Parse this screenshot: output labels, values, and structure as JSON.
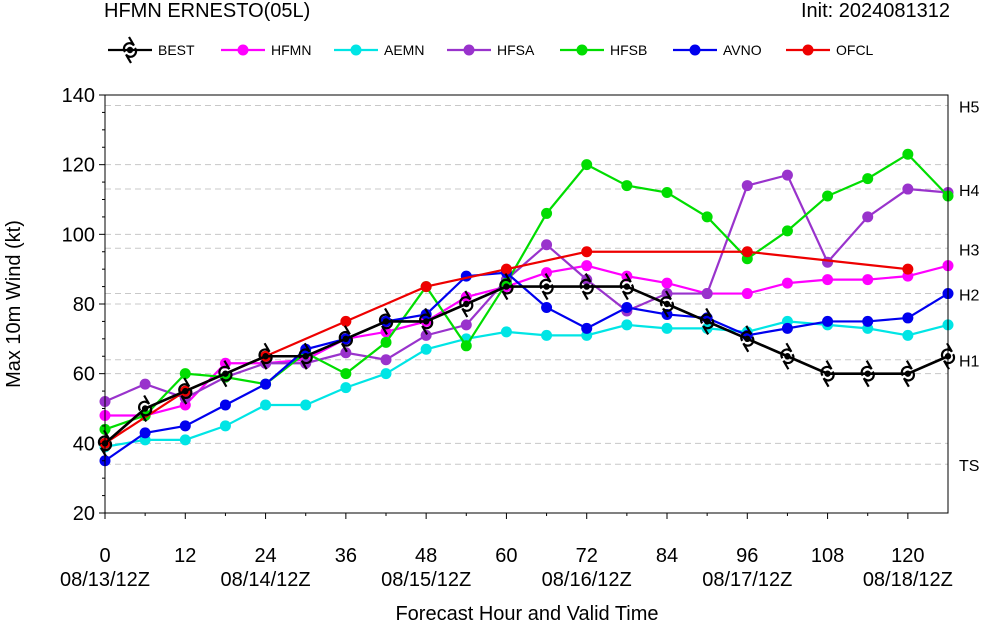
{
  "header": {
    "title": "HFMN ERNESTO(05L)",
    "init": "Init: 2024081312"
  },
  "chart_data": {
    "type": "line",
    "title": "HFMN ERNESTO(05L)",
    "xlabel": "Forecast Hour and Valid Time",
    "ylabel": "Max 10m Wind (kt)",
    "xlim": [
      0,
      126
    ],
    "ylim": [
      20,
      140
    ],
    "x_ticks": [
      0,
      12,
      24,
      36,
      48,
      60,
      72,
      84,
      96,
      108,
      120
    ],
    "x_date_ticks": [
      {
        "hour": 0,
        "label": "08/13/12Z"
      },
      {
        "hour": 24,
        "label": "08/14/12Z"
      },
      {
        "hour": 48,
        "label": "08/15/12Z"
      },
      {
        "hour": 72,
        "label": "08/16/12Z"
      },
      {
        "hour": 96,
        "label": "08/17/12Z"
      },
      {
        "hour": 120,
        "label": "08/18/12Z"
      }
    ],
    "y_ticks": [
      20,
      40,
      60,
      80,
      100,
      120,
      140
    ],
    "intensity_categories": [
      {
        "label": "TS",
        "value": 34
      },
      {
        "label": "H1",
        "value": 64
      },
      {
        "label": "H2",
        "value": 83
      },
      {
        "label": "H3",
        "value": 96
      },
      {
        "label": "H4",
        "value": 113
      },
      {
        "label": "H5",
        "value": 137
      }
    ],
    "legend_position": "top",
    "series": [
      {
        "name": "BEST",
        "color": "#000000",
        "marker": "hurricane-symbol",
        "x": [
          0,
          6,
          12,
          18,
          24,
          30,
          36,
          42,
          48,
          54,
          60,
          66,
          72,
          78,
          84,
          90,
          96,
          102,
          108,
          114,
          120,
          126
        ],
        "y": [
          40,
          50,
          55,
          60,
          65,
          65,
          70,
          75,
          75,
          80,
          85,
          85,
          85,
          85,
          80,
          75,
          70,
          65,
          60,
          60,
          60,
          65
        ]
      },
      {
        "name": "HFMN",
        "color": "#ff00ff",
        "marker": "circle",
        "x": [
          0,
          6,
          12,
          18,
          24,
          30,
          36,
          42,
          48,
          54,
          60,
          66,
          72,
          78,
          84,
          90,
          96,
          102,
          108,
          114,
          120,
          126
        ],
        "y": [
          48,
          48,
          51,
          63,
          63,
          64,
          70,
          72,
          75,
          82,
          85,
          89,
          91,
          88,
          86,
          83,
          83,
          86,
          87,
          87,
          88,
          91
        ]
      },
      {
        "name": "AEMN",
        "color": "#00e5e5",
        "marker": "circle",
        "x": [
          0,
          6,
          12,
          18,
          24,
          30,
          36,
          42,
          48,
          54,
          60,
          66,
          72,
          78,
          84,
          90,
          96,
          102,
          108,
          114,
          120,
          126
        ],
        "y": [
          39,
          41,
          41,
          45,
          51,
          51,
          56,
          60,
          67,
          70,
          72,
          71,
          71,
          74,
          73,
          73,
          72,
          75,
          74,
          73,
          71,
          74
        ]
      },
      {
        "name": "HFSA",
        "color": "#9933cc",
        "marker": "circle",
        "x": [
          0,
          6,
          12,
          18,
          24,
          30,
          36,
          42,
          48,
          54,
          60,
          66,
          72,
          78,
          84,
          90,
          96,
          102,
          108,
          114,
          120,
          126
        ],
        "y": [
          52,
          57,
          53,
          59,
          63,
          63,
          66,
          64,
          71,
          74,
          87,
          97,
          87,
          78,
          83,
          83,
          114,
          117,
          92,
          105,
          113,
          112
        ]
      },
      {
        "name": "HFSB",
        "color": "#00dd00",
        "marker": "circle",
        "x": [
          0,
          6,
          12,
          18,
          24,
          30,
          36,
          42,
          48,
          54,
          60,
          66,
          72,
          78,
          84,
          90,
          96,
          102,
          108,
          114,
          120,
          126
        ],
        "y": [
          44,
          48,
          60,
          59,
          57,
          66,
          60,
          69,
          85,
          68,
          86,
          106,
          120,
          114,
          112,
          105,
          93,
          101,
          111,
          116,
          123,
          111
        ]
      },
      {
        "name": "AVNO",
        "color": "#0000ee",
        "marker": "circle",
        "x": [
          0,
          6,
          12,
          18,
          24,
          30,
          36,
          42,
          48,
          54,
          60,
          66,
          72,
          78,
          84,
          90,
          96,
          102,
          108,
          114,
          120,
          126
        ],
        "y": [
          35,
          43,
          45,
          51,
          57,
          67,
          70,
          75,
          77,
          88,
          89,
          79,
          73,
          79,
          77,
          76,
          71,
          73,
          75,
          75,
          76,
          83
        ]
      },
      {
        "name": "OFCL",
        "color": "#ee0000",
        "marker": "circle",
        "x": [
          0,
          12,
          24,
          36,
          48,
          60,
          72,
          96,
          120
        ],
        "y": [
          40,
          55,
          65,
          75,
          85,
          90,
          95,
          95,
          90
        ]
      }
    ]
  }
}
